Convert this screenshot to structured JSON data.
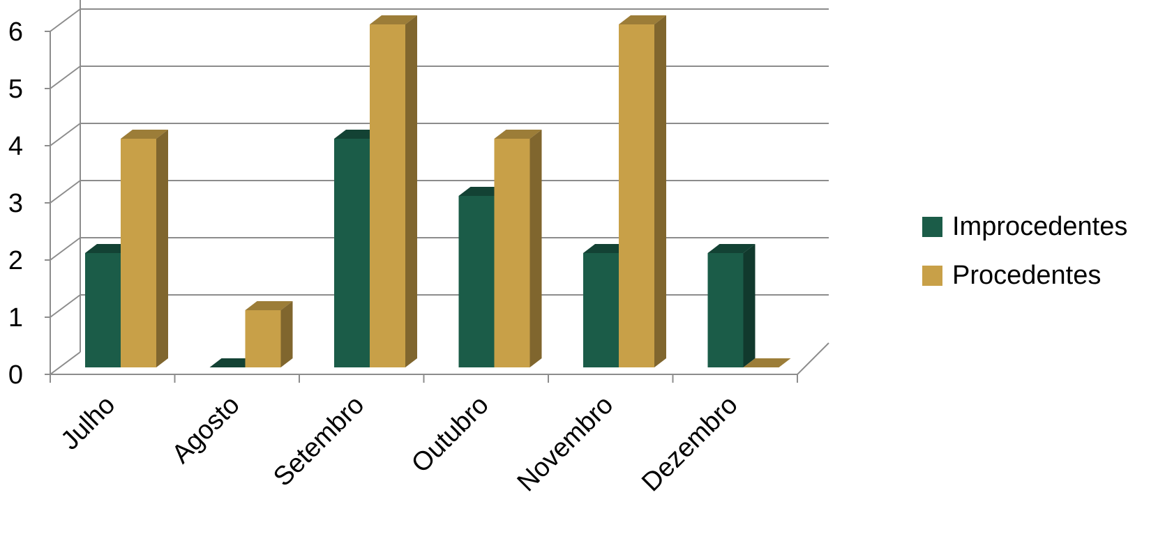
{
  "chart_data": {
    "type": "bar",
    "categories": [
      "Julho",
      "Agosto",
      "Setembro",
      "Outubro",
      "Novembro",
      "Dezembro"
    ],
    "series": [
      {
        "name": "Improcedentes",
        "values": [
          2,
          0,
          4,
          3,
          2,
          2
        ],
        "color": "#1b5c48"
      },
      {
        "name": "Procedentes",
        "values": [
          4,
          1,
          6,
          4,
          6,
          0
        ],
        "color": "#c8a048"
      }
    ],
    "ylim": [
      0,
      6
    ],
    "yticks": [
      "0",
      "1",
      "2",
      "3",
      "4",
      "5",
      "6"
    ],
    "grid": true,
    "legend_position": "right",
    "style": "3d-clustered-column"
  }
}
